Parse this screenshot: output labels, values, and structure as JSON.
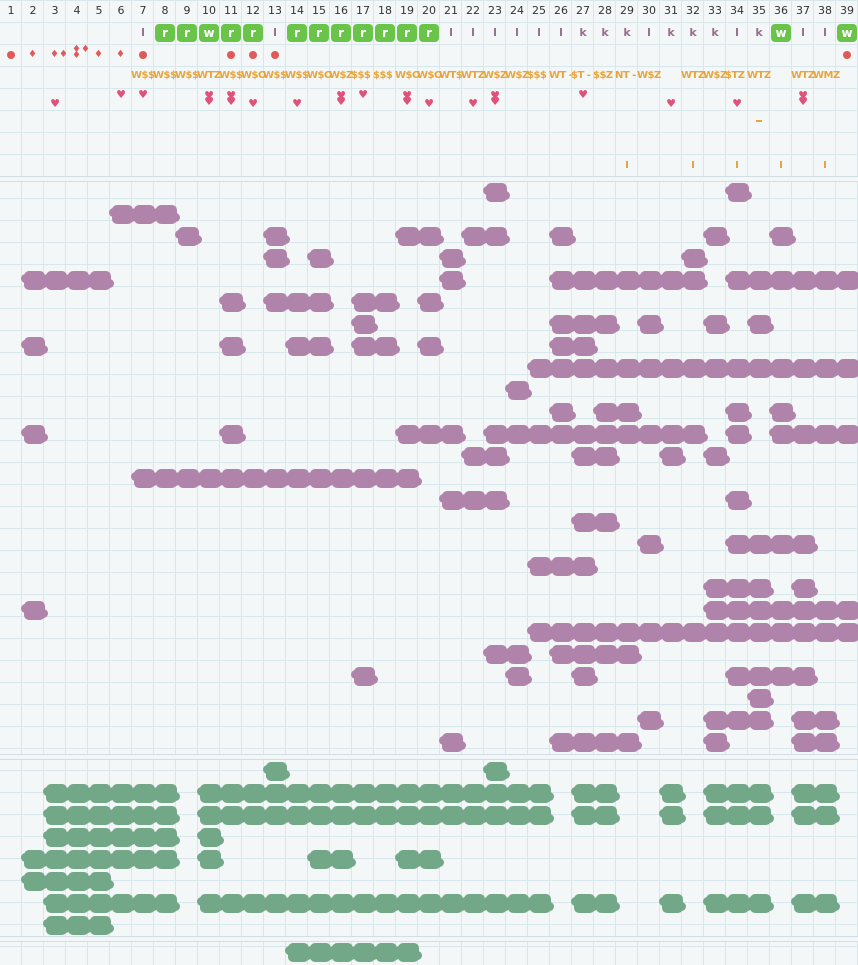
{
  "columns": [
    "1",
    "2",
    "3",
    "4",
    "5",
    "6",
    "7",
    "8",
    "9",
    "10",
    "11",
    "12",
    "13",
    "14",
    "15",
    "16",
    "17",
    "18",
    "19",
    "20",
    "21",
    "22",
    "23",
    "24",
    "25",
    "26",
    "27",
    "28",
    "29",
    "30",
    "31",
    "32",
    "33",
    "34",
    "35",
    "36",
    "37",
    "38",
    "39"
  ],
  "tiles_row": [
    {
      "col": 7,
      "kind": "letter",
      "text": "l"
    },
    {
      "col": 8,
      "kind": "tile",
      "text": "r"
    },
    {
      "col": 9,
      "kind": "tile",
      "text": "r"
    },
    {
      "col": 10,
      "kind": "tile",
      "text": "w"
    },
    {
      "col": 11,
      "kind": "tile",
      "text": "r"
    },
    {
      "col": 12,
      "kind": "tile",
      "text": "r"
    },
    {
      "col": 13,
      "kind": "letter",
      "text": "l"
    },
    {
      "col": 14,
      "kind": "tile",
      "text": "r"
    },
    {
      "col": 15,
      "kind": "tile",
      "text": "r"
    },
    {
      "col": 16,
      "kind": "tile",
      "text": "r"
    },
    {
      "col": 17,
      "kind": "tile",
      "text": "r"
    },
    {
      "col": 18,
      "kind": "tile",
      "text": "r"
    },
    {
      "col": 19,
      "kind": "tile",
      "text": "r"
    },
    {
      "col": 20,
      "kind": "tile",
      "text": "r"
    },
    {
      "col": 21,
      "kind": "letter",
      "text": "l"
    },
    {
      "col": 22,
      "kind": "letter",
      "text": "l"
    },
    {
      "col": 23,
      "kind": "letter",
      "text": "l"
    },
    {
      "col": 24,
      "kind": "letter",
      "text": "l"
    },
    {
      "col": 25,
      "kind": "letter",
      "text": "l"
    },
    {
      "col": 26,
      "kind": "letter",
      "text": "l"
    },
    {
      "col": 27,
      "kind": "letter",
      "text": "k"
    },
    {
      "col": 28,
      "kind": "letter",
      "text": "k"
    },
    {
      "col": 29,
      "kind": "letter",
      "text": "k"
    },
    {
      "col": 30,
      "kind": "letter",
      "text": "l"
    },
    {
      "col": 31,
      "kind": "letter",
      "text": "k"
    },
    {
      "col": 32,
      "kind": "letter",
      "text": "k"
    },
    {
      "col": 33,
      "kind": "letter",
      "text": "k"
    },
    {
      "col": 34,
      "kind": "letter",
      "text": "l"
    },
    {
      "col": 35,
      "kind": "letter",
      "text": "k"
    },
    {
      "col": 36,
      "kind": "tile",
      "text": "w"
    },
    {
      "col": 37,
      "kind": "letter",
      "text": "l"
    },
    {
      "col": 38,
      "kind": "letter",
      "text": "l"
    },
    {
      "col": 39,
      "kind": "tile",
      "text": "w"
    }
  ],
  "weather_row": [
    {
      "col": 1,
      "kind": "dot"
    },
    {
      "col": 2,
      "kind": "drop1"
    },
    {
      "col": 3,
      "kind": "drop2"
    },
    {
      "col": 4,
      "kind": "drop3"
    },
    {
      "col": 5,
      "kind": "drop1"
    },
    {
      "col": 6,
      "kind": "drop1"
    },
    {
      "col": 7,
      "kind": "dot"
    },
    {
      "col": 11,
      "kind": "dot"
    },
    {
      "col": 12,
      "kind": "dot"
    },
    {
      "col": 13,
      "kind": "dot"
    },
    {
      "col": 39,
      "kind": "dot"
    }
  ],
  "codes_row": [
    {
      "col": 7,
      "text": "W$$"
    },
    {
      "col": 8,
      "text": "W$$"
    },
    {
      "col": 9,
      "text": "W$$"
    },
    {
      "col": 10,
      "text": "WTZ"
    },
    {
      "col": 11,
      "text": "W$$"
    },
    {
      "col": 12,
      "text": "W$O"
    },
    {
      "col": 13,
      "text": "W$$"
    },
    {
      "col": 14,
      "text": "W$$"
    },
    {
      "col": 15,
      "text": "W$O"
    },
    {
      "col": 16,
      "text": "W$Z"
    },
    {
      "col": 17,
      "text": "$$$"
    },
    {
      "col": 18,
      "text": "$$$"
    },
    {
      "col": 19,
      "text": "W$O"
    },
    {
      "col": 20,
      "text": "W$O"
    },
    {
      "col": 21,
      "text": "WT$"
    },
    {
      "col": 22,
      "text": "WTZ"
    },
    {
      "col": 23,
      "text": "W$Z"
    },
    {
      "col": 24,
      "text": "W$Z"
    },
    {
      "col": 25,
      "text": "$$$"
    },
    {
      "col": 26,
      "text": "WT -"
    },
    {
      "col": 27,
      "text": "$T -"
    },
    {
      "col": 28,
      "text": "$$Z"
    },
    {
      "col": 29,
      "text": "NT -"
    },
    {
      "col": 30,
      "text": "W$Z"
    },
    {
      "col": 32,
      "text": "WTZ"
    },
    {
      "col": 33,
      "text": "W$Z"
    },
    {
      "col": 34,
      "text": "$TZ"
    },
    {
      "col": 35,
      "text": "WTZ"
    },
    {
      "col": 37,
      "text": "WTZ"
    },
    {
      "col": 38,
      "text": "WMZ"
    }
  ],
  "hearts_top": [
    6,
    7,
    17,
    27
  ],
  "hearts_bottom": [
    {
      "col": 3,
      "n": 1
    },
    {
      "col": 10,
      "n": 2
    },
    {
      "col": 11,
      "n": 2
    },
    {
      "col": 12,
      "n": 1
    },
    {
      "col": 14,
      "n": 1
    },
    {
      "col": 16,
      "n": 2
    },
    {
      "col": 19,
      "n": 2
    },
    {
      "col": 20,
      "n": 1
    },
    {
      "col": 22,
      "n": 1
    },
    {
      "col": 23,
      "n": 2
    },
    {
      "col": 31,
      "n": 1
    },
    {
      "col": 34,
      "n": 1
    },
    {
      "col": 37,
      "n": 2
    }
  ],
  "dash_cols": [
    35
  ],
  "tick_cols": [
    29,
    32,
    34,
    36,
    38
  ],
  "purple_grid": [
    "......................X..........X.....",
    ".....XXX...............................",
    "........X...X.....XX.XX..X......X..X...",
    "............X.X.....X..........X.......",
    ".XXXX...............X....XXXXXXX.XXXXXX",
    "..........X.XXX.XX.X...................",
    "................X........XXX.X..X.X....",
    ".X........X..XX.XX.X.....XX............",
    "........................XXXXXXXXXXXXXXX",
    ".......................X...............",
    ".........................X.XX....X.X...",
    ".X........X.......XXX.XXXXXXXXXX.X.XXXX",
    ".....................XX...XX..X.X......",
    "......XXXXXXXXXXXXX....................",
    "....................XXX..........X.....",
    "..........................XX...........",
    ".............................X...XXXX..",
    "........................XXX............",
    "................................XXX.X..",
    ".X..............................XXXXXXX",
    "........................XXXXXXXXXXXXXXX",
    "......................XX.XXXX..........",
    "................X......X..X......XXXX..",
    "..................................X....",
    ".............................X..XXX.XX.",
    "....................X....XXXX...X...XX."
  ],
  "green_grid": [
    "............X.........X................",
    "..XXXXXX.XXXXXXXXXXXXXXXX.XX..X.XXX.XX.",
    "..XXXXXX.XXXXXXXXXXXXXXXX.XX..X.XXX.XX.",
    "..XXXXXX.X.............................",
    ".XXXXXXX.X....XX..XX...................",
    ".XXXX..................................",
    "..XXXXXX.XXXXXXXXXXXXXXXX.XX..X.XXX.XX.",
    "..XXX.................................."
  ],
  "bottom_grid": [
    ".............XXXXXX...................."
  ]
}
